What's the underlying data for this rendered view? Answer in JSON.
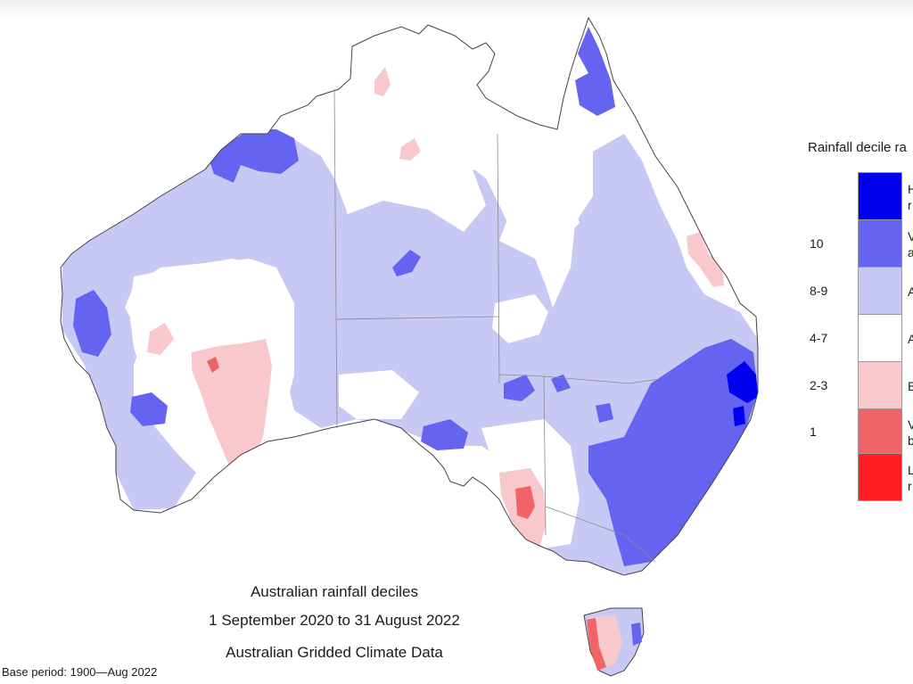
{
  "captions": {
    "line1": "Australian rainfall deciles",
    "line2": "1 September 2020 to 31 August 2022",
    "line3": "Australian Gridded Climate Data"
  },
  "base_period": "Base period: 1900—Aug 2022",
  "legend": {
    "title": "Rainfall decile ra",
    "items": [
      {
        "code": "",
        "text1": "H",
        "text2": "r",
        "color": "#0000ee"
      },
      {
        "code": "10",
        "text1": "V",
        "text2": "a",
        "color": "#6464f0"
      },
      {
        "code": "8-9",
        "text1": "A",
        "text2": "",
        "color": "#c8c8f4"
      },
      {
        "code": "4-7",
        "text1": "A",
        "text2": "",
        "color": "#ffffff"
      },
      {
        "code": "2-3",
        "text1": "B",
        "text2": "",
        "color": "#f8c8cc"
      },
      {
        "code": "1",
        "text1": "V",
        "text2": "b",
        "color": "#f06468"
      },
      {
        "code": "",
        "text1": "L",
        "text2": "r",
        "color": "#ff1e24"
      }
    ]
  },
  "colors": {
    "highest": "#0000ee",
    "very_much_above": "#6464f0",
    "above": "#c8c8f4",
    "average": "#ffffff",
    "below": "#f8c8cc",
    "very_much_below": "#f06468",
    "lowest": "#ff1e24",
    "coast": "#444444",
    "state_border": "#888888"
  }
}
